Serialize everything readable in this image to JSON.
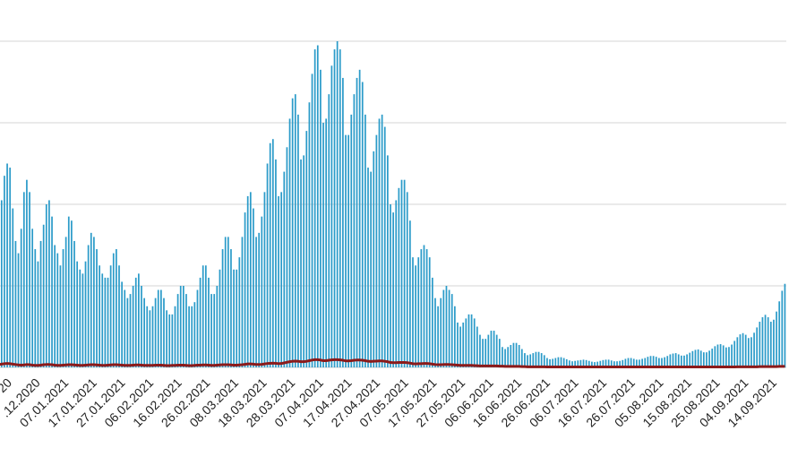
{
  "chart_data": {
    "type": "bar",
    "title": "",
    "xlabel": "",
    "ylabel": "",
    "grid": true,
    "colors": {
      "bars": "#2b9bc9",
      "line": "#8b1a1a",
      "grid": "#e3e3e3",
      "tick_text": "#222222"
    },
    "x_tick_labels": [
      "20",
      ".12.2020",
      "07.01.2021",
      "17.01.2021",
      "27.01.2021",
      "06.02.2021",
      "16.02.2021",
      "26.02.2021",
      "08.03.2021",
      "18.03.2021",
      "28.03.2021",
      "07.04.2021",
      "17.04.2021",
      "27.04.2021",
      "07.05.2021",
      "17.05.2021",
      "27.05.2021",
      "06.06.2021",
      "16.06.2021",
      "26.06.2021",
      "06.07.2021",
      "16.07.2021",
      "26.07.2021",
      "05.08.2021",
      "15.08.2021",
      "25.08.2021",
      "04.09.2021",
      "14.09.2021"
    ],
    "series": [
      {
        "type": "bar",
        "values": [
          2500,
          3200,
          4100,
          4700,
          5000,
          4900,
          3900,
          3100,
          2800,
          3400,
          4300,
          4600,
          4300,
          3400,
          2900,
          2600,
          3100,
          3500,
          4000,
          4100,
          3700,
          3000,
          2800,
          2500,
          2900,
          3200,
          3700,
          3600,
          3100,
          2600,
          2400,
          2300,
          2600,
          3000,
          3300,
          3200,
          2900,
          2500,
          2300,
          2200,
          2200,
          2500,
          2800,
          2900,
          2500,
          2100,
          1900,
          1700,
          1800,
          2000,
          2200,
          2300,
          2000,
          1700,
          1500,
          1400,
          1500,
          1700,
          1900,
          1900,
          1700,
          1400,
          1300,
          1300,
          1500,
          1800,
          2000,
          2000,
          1800,
          1500,
          1500,
          1600,
          1900,
          2200,
          2500,
          2500,
          2200,
          1800,
          1800,
          2000,
          2400,
          2900,
          3200,
          3200,
          2900,
          2400,
          2400,
          2700,
          3200,
          3800,
          4200,
          4300,
          3900,
          3200,
          3300,
          3700,
          4300,
          5000,
          5500,
          5600,
          5100,
          4200,
          4300,
          4800,
          5400,
          6100,
          6600,
          6700,
          6200,
          5100,
          5200,
          5800,
          6500,
          7200,
          7800,
          7900,
          7300,
          6000,
          6100,
          6700,
          7400,
          7800,
          8000,
          7800,
          7100,
          5700,
          5700,
          6200,
          6700,
          7100,
          7300,
          7000,
          6200,
          4900,
          4800,
          5300,
          5700,
          6100,
          6200,
          5900,
          5200,
          4000,
          3800,
          4100,
          4400,
          4600,
          4600,
          4300,
          3600,
          2700,
          2500,
          2700,
          2900,
          3000,
          2900,
          2700,
          2200,
          1700,
          1500,
          1700,
          1900,
          2000,
          1900,
          1800,
          1500,
          1100,
          1000,
          1100,
          1200,
          1300,
          1300,
          1200,
          1000,
          800,
          700,
          700,
          800,
          900,
          900,
          800,
          700,
          500,
          450,
          500,
          550,
          600,
          600,
          550,
          450,
          350,
          300,
          320,
          350,
          380,
          380,
          350,
          300,
          230,
          200,
          210,
          230,
          250,
          250,
          230,
          200,
          170,
          150,
          160,
          170,
          180,
          190,
          180,
          160,
          140,
          130,
          140,
          160,
          180,
          190,
          190,
          170,
          150,
          150,
          160,
          180,
          210,
          230,
          230,
          210,
          190,
          190,
          210,
          230,
          260,
          280,
          280,
          260,
          230,
          230,
          250,
          280,
          320,
          340,
          350,
          320,
          290,
          290,
          320,
          360,
          400,
          430,
          440,
          410,
          370,
          370,
          410,
          460,
          520,
          560,
          570,
          540,
          490,
          500,
          560,
          650,
          740,
          810,
          840,
          800,
          720,
          740,
          850,
          980,
          1120,
          1230,
          1290,
          1230,
          1120,
          1170,
          1370,
          1620,
          1880,
          2050
        ]
      },
      {
        "type": "line",
        "values": [
          60,
          70,
          80,
          90,
          95,
          90,
          80,
          70,
          60,
          55,
          60,
          70,
          65,
          55,
          50,
          50,
          55,
          65,
          70,
          70,
          65,
          55,
          50,
          50,
          55,
          60,
          65,
          65,
          60,
          55,
          50,
          50,
          55,
          60,
          65,
          65,
          60,
          55,
          50,
          50,
          55,
          60,
          65,
          65,
          60,
          55,
          50,
          50,
          50,
          55,
          60,
          60,
          55,
          50,
          50,
          50,
          50,
          55,
          55,
          55,
          50,
          45,
          45,
          50,
          50,
          55,
          55,
          55,
          50,
          45,
          45,
          50,
          55,
          55,
          60,
          60,
          55,
          50,
          50,
          55,
          60,
          65,
          65,
          65,
          60,
          55,
          55,
          60,
          65,
          75,
          85,
          85,
          80,
          70,
          70,
          75,
          85,
          95,
          100,
          105,
          100,
          90,
          95,
          110,
          125,
          140,
          150,
          155,
          150,
          140,
          140,
          150,
          165,
          180,
          190,
          190,
          180,
          165,
          165,
          175,
          185,
          190,
          190,
          185,
          175,
          160,
          160,
          165,
          175,
          180,
          180,
          175,
          165,
          150,
          145,
          150,
          155,
          160,
          160,
          150,
          140,
          120,
          115,
          115,
          120,
          120,
          120,
          115,
          105,
          90,
          85,
          90,
          90,
          95,
          95,
          90,
          80,
          70,
          65,
          65,
          70,
          70,
          70,
          65,
          60,
          55,
          50,
          50,
          50,
          50,
          50,
          45,
          40,
          35,
          35,
          35,
          35,
          35,
          35,
          35,
          30,
          30,
          25,
          25,
          25,
          25,
          25,
          25,
          20,
          20,
          15,
          15,
          15,
          15,
          15,
          15,
          15,
          10,
          10,
          10,
          10,
          10,
          10,
          10,
          10,
          10,
          10,
          10,
          10,
          10,
          10,
          10,
          10,
          10,
          10,
          10,
          10,
          10,
          10,
          10,
          10,
          10,
          10,
          10,
          10,
          10,
          10,
          10,
          10,
          10,
          10,
          10,
          10,
          10,
          10,
          10,
          10,
          10,
          10,
          10,
          10,
          10,
          10,
          10,
          10,
          10,
          10,
          10,
          10,
          10,
          10,
          10,
          10,
          10,
          10,
          10,
          10,
          10,
          10,
          10,
          10,
          10,
          10,
          10,
          10,
          15,
          15,
          15,
          15,
          15,
          15,
          15,
          15,
          20,
          20,
          20,
          20,
          20,
          20,
          20,
          25,
          25,
          25
        ]
      }
    ],
    "ylim": [
      0,
      8000
    ]
  }
}
